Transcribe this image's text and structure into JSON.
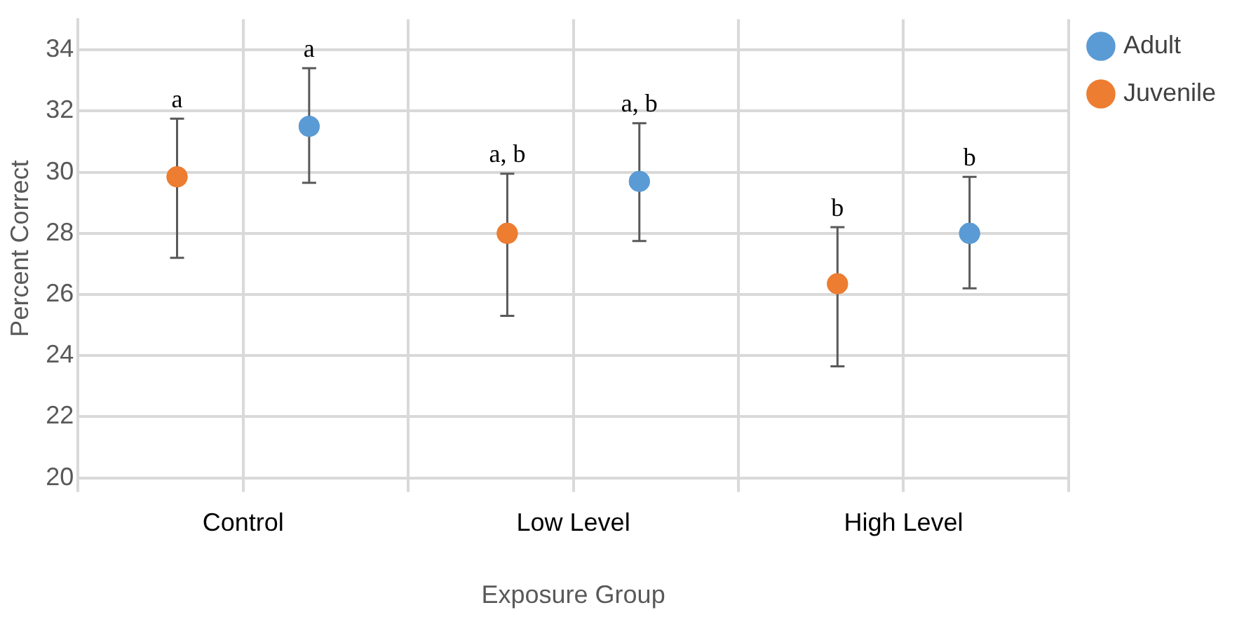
{
  "chart_data": {
    "type": "scatter",
    "xlabel": "Exposure Group",
    "ylabel": "Percent Correct",
    "categories": [
      "Control",
      "Low Level",
      "High Level"
    ],
    "series": [
      {
        "name": "Adult",
        "color": "#5b9bd5",
        "values": [
          31.5,
          29.7,
          28.0
        ],
        "errors": [
          [
            29.65,
            33.4
          ],
          [
            27.75,
            31.6
          ],
          [
            26.2,
            29.85
          ]
        ],
        "value_labels": [
          "a",
          "a, b",
          "b"
        ]
      },
      {
        "name": "Juvenile",
        "color": "#ed7d31",
        "values": [
          29.85,
          28.0,
          26.35
        ],
        "errors": [
          [
            27.2,
            31.75
          ],
          [
            25.3,
            29.95
          ],
          [
            23.65,
            28.2
          ]
        ],
        "value_labels": [
          "a",
          "a, b",
          "b"
        ]
      }
    ],
    "ylim": [
      20,
      35
    ],
    "yticks": [
      20,
      22,
      24,
      26,
      28,
      30,
      32,
      34
    ],
    "grid": true,
    "legend": "top right",
    "marker": "circle"
  }
}
